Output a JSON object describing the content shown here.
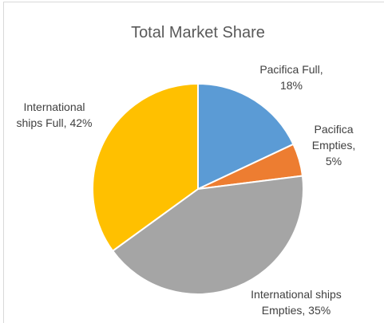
{
  "chart_data": {
    "type": "pie",
    "title": "Total Market Share",
    "categories": [
      "Pacifica Full",
      "Pacifica Empties",
      "International ships Full",
      "International ships Empties"
    ],
    "values": [
      18,
      5,
      42,
      35
    ],
    "value_labels": [
      "18%",
      "5%",
      "42%",
      "35%"
    ],
    "colors": [
      "#5b9bd5",
      "#ed7d31",
      "#a5a5a5",
      "#ffc000"
    ]
  }
}
